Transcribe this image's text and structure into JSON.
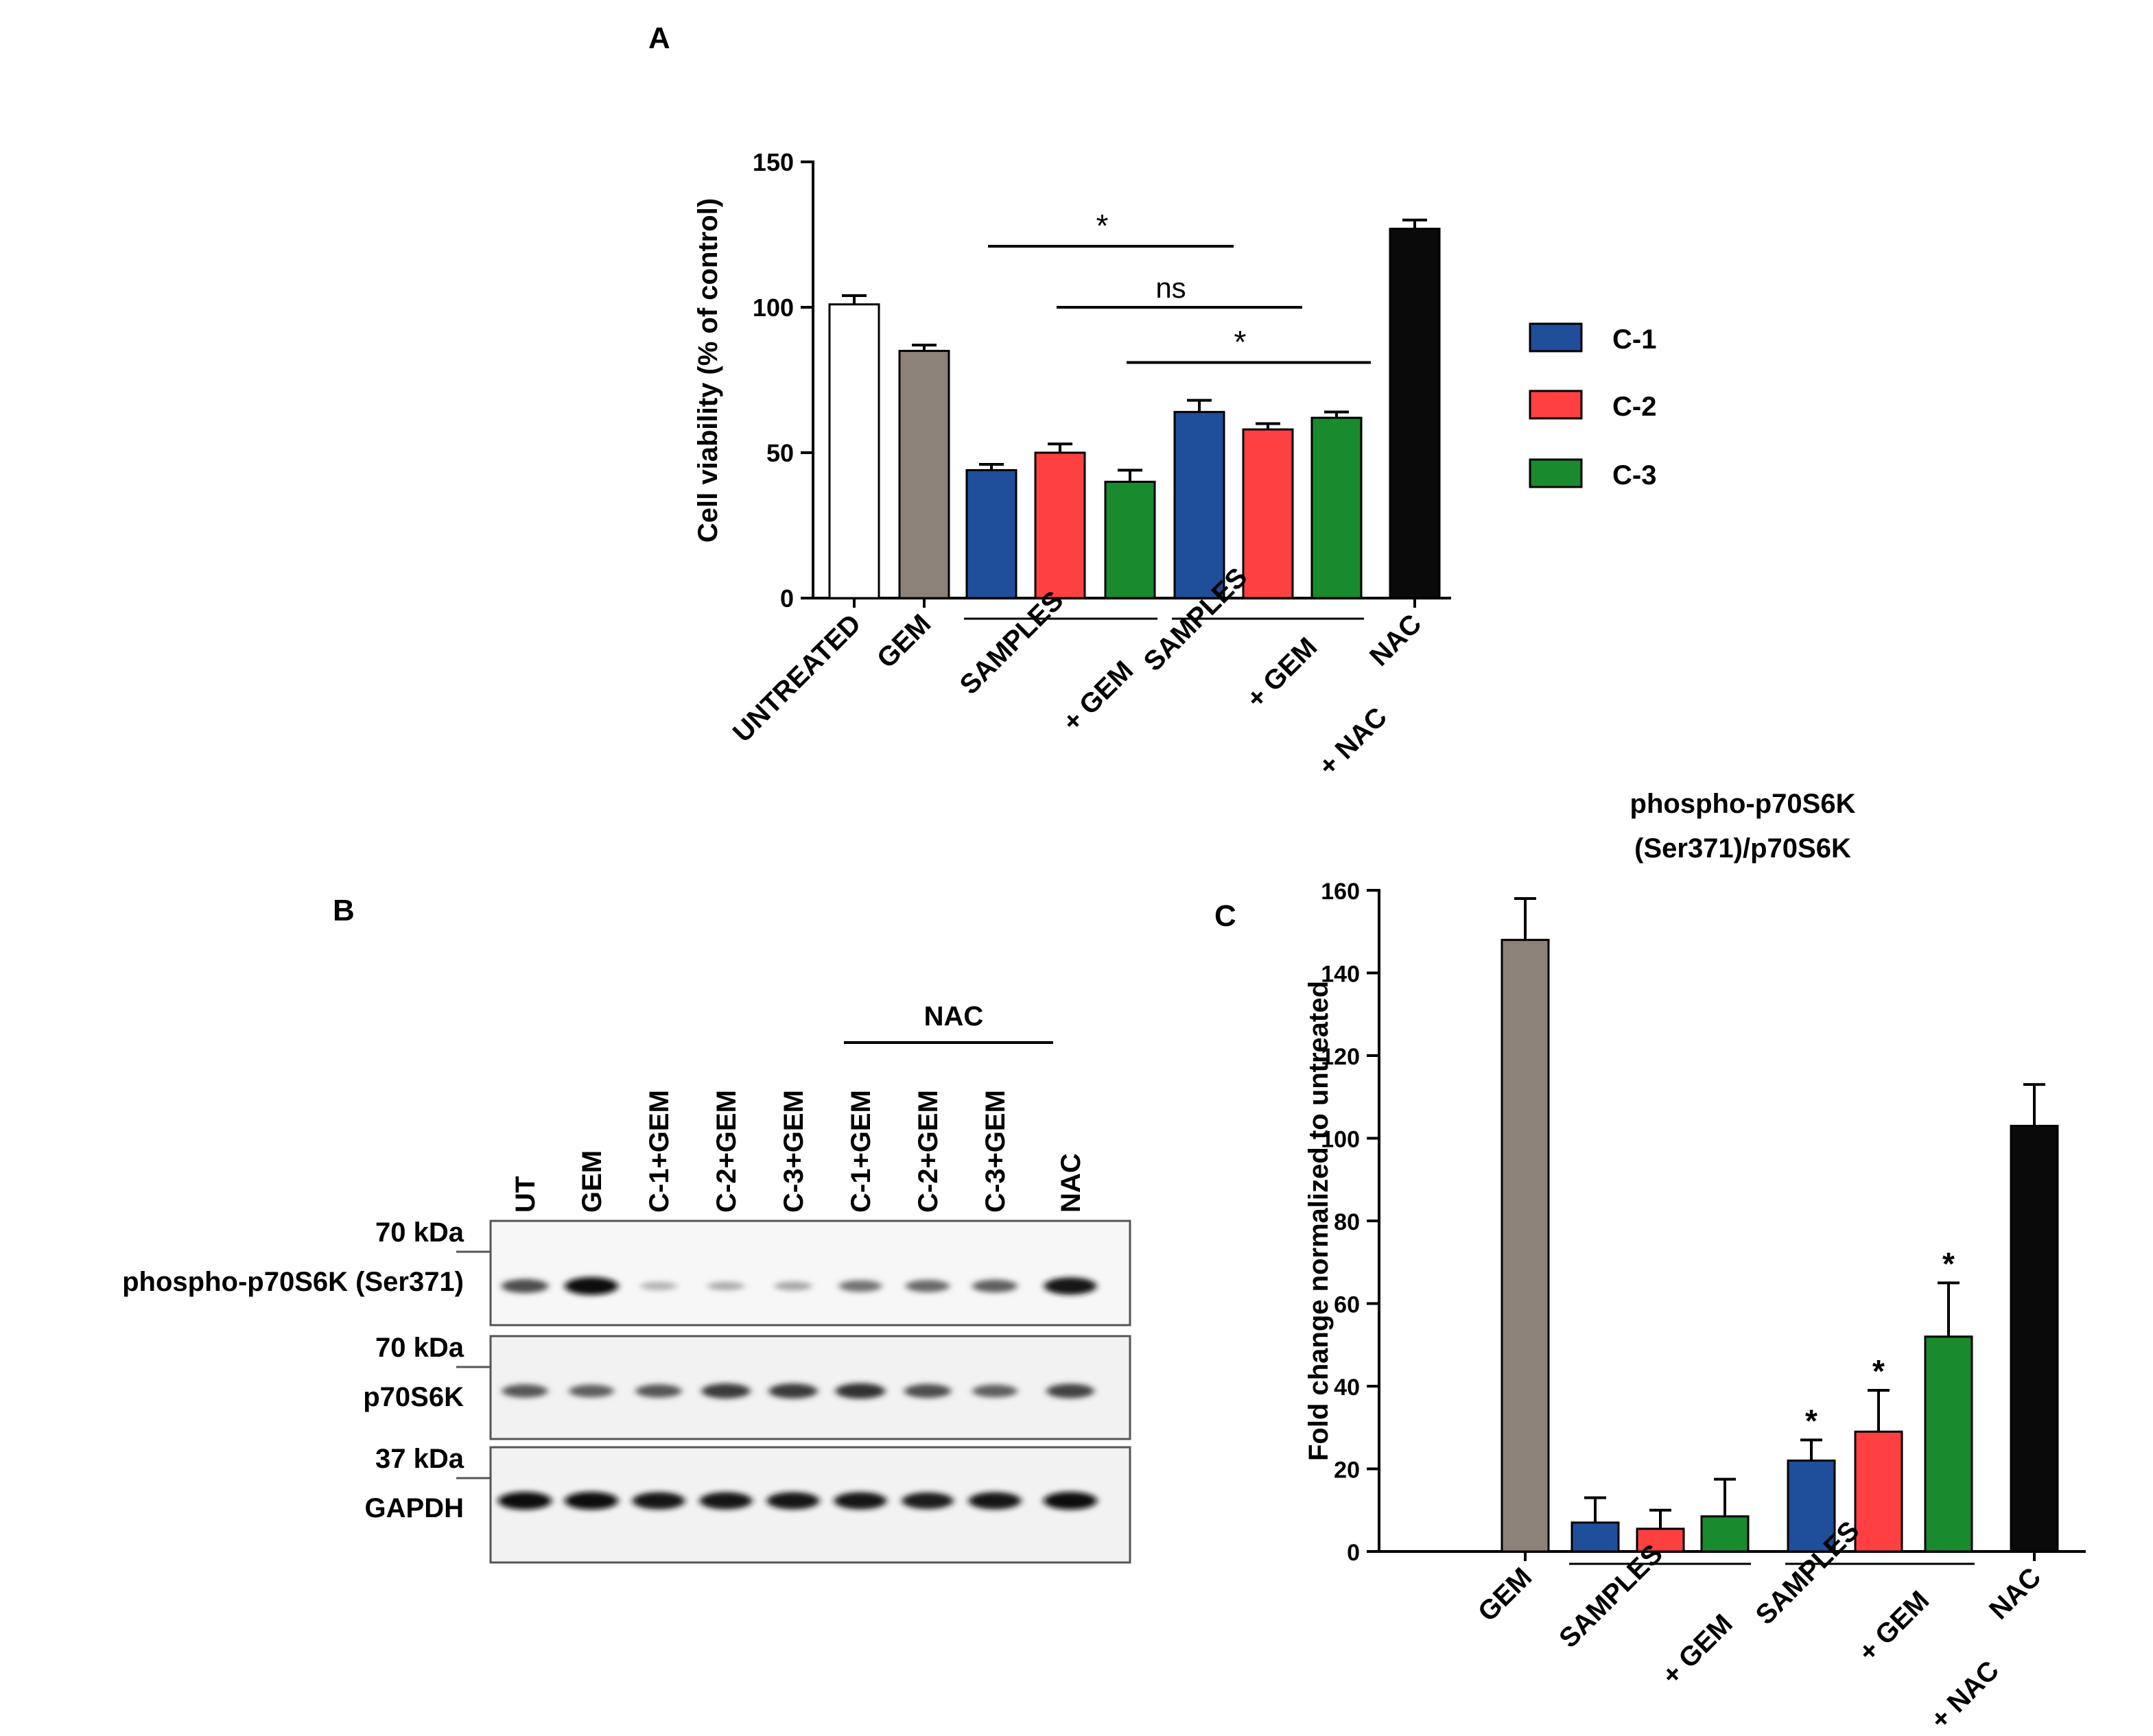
{
  "panels": {
    "a": "A",
    "b": "B",
    "c": "C"
  },
  "colors": {
    "untreated": "#ffffff",
    "gem": "#8c827a",
    "c1": "#1f4e9a",
    "c2": "#ff4040",
    "c3": "#1a8a2e",
    "nac": "#0a0a0a"
  },
  "legend": [
    {
      "label": "C-1",
      "color": "#1f4e9a"
    },
    {
      "label": "C-2",
      "color": "#ff4040"
    },
    {
      "label": "C-3",
      "color": "#1a8a2e"
    }
  ],
  "chart_data": [
    {
      "type": "bar",
      "panel": "A",
      "ylabel": "Cell viability (% of control)",
      "ylim": [
        0,
        150
      ],
      "yticks": [
        0,
        50,
        100,
        150
      ],
      "bars": [
        {
          "group": "UNTREATED",
          "color": "#ffffff",
          "value": 101,
          "error": 3
        },
        {
          "group": "GEM",
          "color": "#8c827a",
          "value": 85,
          "error": 2
        },
        {
          "group": "SAMPLES + GEM",
          "color": "#1f4e9a",
          "value": 44,
          "error": 2
        },
        {
          "group": "SAMPLES + GEM",
          "color": "#ff4040",
          "value": 50,
          "error": 3
        },
        {
          "group": "SAMPLES + GEM",
          "color": "#1a8a2e",
          "value": 40,
          "error": 4
        },
        {
          "group": "SAMPLES + GEM + NAC",
          "color": "#1f4e9a",
          "value": 64,
          "error": 4
        },
        {
          "group": "SAMPLES + GEM + NAC",
          "color": "#ff4040",
          "value": 58,
          "error": 2
        },
        {
          "group": "SAMPLES + GEM + NAC",
          "color": "#1a8a2e",
          "value": 62,
          "error": 2
        },
        {
          "group": "NAC",
          "color": "#0a0a0a",
          "value": 127,
          "error": 3
        }
      ],
      "xlabels": [
        {
          "lines": [
            "UNTREATED"
          ],
          "bars": [
            0
          ]
        },
        {
          "lines": [
            "GEM"
          ],
          "bars": [
            1
          ]
        },
        {
          "lines": [
            "SAMPLES",
            "+ GEM"
          ],
          "bars": [
            2,
            4
          ]
        },
        {
          "lines": [
            "SAMPLES",
            "+ GEM",
            "+ NAC"
          ],
          "bars": [
            5,
            7
          ]
        },
        {
          "lines": [
            "NAC"
          ],
          "bars": [
            8
          ]
        }
      ],
      "significance": [
        {
          "label": "*",
          "from": 2,
          "to": 5,
          "y": 121
        },
        {
          "label": "ns",
          "from": 3,
          "to": 6,
          "y": 100
        },
        {
          "label": "*",
          "from": 4,
          "to": 7,
          "y": 81
        }
      ]
    },
    {
      "type": "bar",
      "panel": "C",
      "title": "phospho-p70S6K\n(Ser371)/p70S6K",
      "ylabel": "Fold change normalized to untreated",
      "ylim": [
        0,
        160
      ],
      "yticks": [
        0,
        20,
        40,
        60,
        80,
        100,
        120,
        140,
        160
      ],
      "bars": [
        {
          "group": "GEM",
          "color": "#8c827a",
          "value": 148,
          "error": 10
        },
        {
          "group": "SAMPLES + GEM",
          "color": "#1f4e9a",
          "value": 7,
          "error": 6
        },
        {
          "group": "SAMPLES + GEM",
          "color": "#ff4040",
          "value": 5.5,
          "error": 4.5
        },
        {
          "group": "SAMPLES + GEM",
          "color": "#1a8a2e",
          "value": 8.5,
          "error": 9
        },
        {
          "group": "SAMPLES + GEM + NAC",
          "color": "#1f4e9a",
          "value": 22,
          "error": 5,
          "sig": "*"
        },
        {
          "group": "SAMPLES + GEM + NAC",
          "color": "#ff4040",
          "value": 29,
          "error": 10,
          "sig": "*"
        },
        {
          "group": "SAMPLES + GEM + NAC",
          "color": "#1a8a2e",
          "value": 52,
          "error": 13,
          "sig": "*"
        },
        {
          "group": "NAC",
          "color": "#0a0a0a",
          "value": 103,
          "error": 10
        }
      ],
      "xlabels": [
        {
          "lines": [
            "GEM"
          ],
          "bars": [
            0
          ]
        },
        {
          "lines": [
            "SAMPLES",
            "+ GEM"
          ],
          "bars": [
            1,
            3
          ]
        },
        {
          "lines": [
            "SAMPLES",
            "+ GEM",
            "+ NAC"
          ],
          "bars": [
            4,
            6
          ]
        },
        {
          "lines": [
            "NAC"
          ],
          "bars": [
            7
          ]
        }
      ]
    }
  ],
  "blot": {
    "nac_header": "NAC",
    "lanes": [
      "UT",
      "GEM",
      "C-1+GEM",
      "C-2+GEM",
      "C-3+GEM",
      "C-1+GEM",
      "C-2+GEM",
      "C-3+GEM",
      "NAC"
    ],
    "panels": [
      {
        "marker": "70 kDa",
        "protein": "phospho-p70S6K (Ser371)",
        "intensity": [
          0.65,
          1.0,
          0.12,
          0.15,
          0.18,
          0.45,
          0.5,
          0.55,
          0.95
        ]
      },
      {
        "marker": "70 kDa",
        "protein": "p70S6K",
        "intensity": [
          0.6,
          0.55,
          0.6,
          0.75,
          0.75,
          0.8,
          0.65,
          0.55,
          0.7
        ]
      },
      {
        "marker": "37 kDa",
        "protein": "GAPDH",
        "intensity": [
          1.0,
          1.0,
          0.95,
          0.95,
          0.95,
          0.95,
          0.9,
          0.95,
          1.0
        ]
      }
    ]
  }
}
